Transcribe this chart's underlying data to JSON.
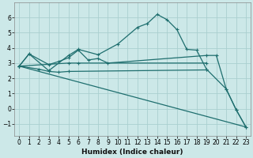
{
  "xlabel": "Humidex (Indice chaleur)",
  "xlim": [
    -0.5,
    23.5
  ],
  "ylim": [
    -1.8,
    7.0
  ],
  "yticks": [
    -1,
    0,
    1,
    2,
    3,
    4,
    5,
    6
  ],
  "xticks": [
    0,
    1,
    2,
    3,
    4,
    5,
    6,
    7,
    8,
    9,
    10,
    11,
    12,
    13,
    14,
    15,
    16,
    17,
    18,
    19,
    20,
    21,
    22,
    23
  ],
  "bg_color": "#cce8e8",
  "line_color": "#1e6e6e",
  "grid_color": "#aacfcf",
  "lines": [
    {
      "x": [
        0,
        23
      ],
      "y": [
        2.8,
        -1.2
      ],
      "markers": false
    },
    {
      "x": [
        0,
        1,
        3,
        5,
        6,
        8,
        10,
        12,
        13,
        14,
        15,
        16,
        17,
        18,
        19,
        21,
        22,
        23
      ],
      "y": [
        2.8,
        3.6,
        2.5,
        3.5,
        3.9,
        3.55,
        4.25,
        5.35,
        5.6,
        6.2,
        5.85,
        5.2,
        3.9,
        3.85,
        2.6,
        1.3,
        -0.05,
        -1.2
      ],
      "markers": true
    },
    {
      "x": [
        0,
        1,
        3,
        4,
        5,
        6,
        7,
        8,
        9,
        19,
        20,
        21,
        22,
        23
      ],
      "y": [
        2.8,
        3.6,
        2.9,
        3.1,
        3.35,
        3.85,
        3.2,
        3.3,
        3.0,
        3.5,
        3.5,
        1.3,
        -0.05,
        -1.2
      ],
      "markers": true
    },
    {
      "x": [
        0,
        2,
        3,
        4,
        5,
        19
      ],
      "y": [
        2.8,
        2.6,
        2.45,
        2.4,
        2.45,
        2.55
      ],
      "markers": true
    },
    {
      "x": [
        0,
        5,
        6,
        19
      ],
      "y": [
        2.8,
        3.0,
        3.0,
        3.0
      ],
      "markers": true
    }
  ]
}
